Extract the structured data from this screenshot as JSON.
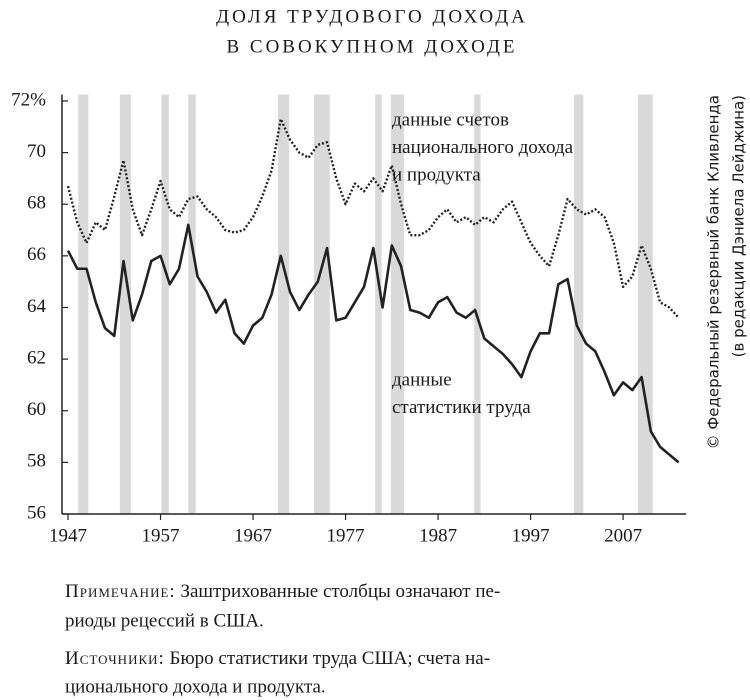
{
  "chart_data": {
    "type": "line",
    "title": [
      "ДОЛЯ ТРУДОВОГО ДОХОДА",
      "В СОВОКУПНОМ ДОХОДЕ"
    ],
    "x": [
      1947,
      1948,
      1949,
      1950,
      1951,
      1952,
      1953,
      1954,
      1955,
      1956,
      1957,
      1958,
      1959,
      1960,
      1961,
      1962,
      1963,
      1964,
      1965,
      1966,
      1967,
      1968,
      1969,
      1970,
      1971,
      1972,
      1973,
      1974,
      1975,
      1976,
      1977,
      1978,
      1979,
      1980,
      1981,
      1982,
      1983,
      1984,
      1985,
      1986,
      1987,
      1988,
      1989,
      1990,
      1991,
      1992,
      1993,
      1994,
      1995,
      1996,
      1997,
      1998,
      1999,
      2000,
      2001,
      2002,
      2003,
      2004,
      2005,
      2006,
      2007,
      2008,
      2009,
      2010,
      2011,
      2012,
      2013
    ],
    "series": [
      {
        "name": [
          "данные счетов",
          "национального дохода",
          "и продукта"
        ],
        "color": "#222222",
        "style": "dotted",
        "values": [
          68.7,
          67.3,
          66.5,
          67.3,
          67.0,
          68.3,
          69.7,
          67.8,
          66.8,
          67.8,
          68.9,
          67.8,
          67.5,
          68.2,
          68.3,
          67.8,
          67.5,
          67.0,
          66.9,
          67.0,
          67.5,
          68.3,
          69.3,
          71.3,
          70.5,
          70.0,
          69.8,
          70.3,
          70.4,
          69.0,
          68.0,
          68.8,
          68.5,
          69.0,
          68.5,
          69.5,
          68.0,
          66.8,
          66.8,
          67.0,
          67.5,
          67.8,
          67.3,
          67.5,
          67.2,
          67.5,
          67.3,
          67.8,
          68.1,
          67.3,
          66.5,
          66.0,
          65.6,
          66.8,
          68.2,
          67.8,
          67.6,
          67.8,
          67.5,
          66.5,
          64.8,
          65.2,
          66.4,
          65.5,
          64.2,
          64.0,
          63.6
        ]
      },
      {
        "name": [
          "данные",
          "статистики труда"
        ],
        "color": "#222222",
        "style": "solid",
        "values": [
          66.2,
          65.5,
          65.5,
          64.2,
          63.2,
          62.9,
          65.8,
          63.5,
          64.5,
          65.8,
          66.0,
          64.9,
          65.5,
          67.2,
          65.2,
          64.6,
          63.8,
          64.3,
          63.0,
          62.6,
          63.3,
          63.6,
          64.5,
          66.0,
          64.6,
          63.9,
          64.5,
          65.0,
          66.3,
          63.5,
          63.6,
          64.2,
          64.8,
          66.3,
          64.0,
          66.4,
          65.6,
          63.9,
          63.8,
          63.6,
          64.2,
          64.4,
          63.8,
          63.6,
          63.9,
          62.8,
          62.5,
          62.2,
          61.8,
          61.3,
          62.3,
          63.0,
          63.0,
          64.9,
          65.1,
          63.3,
          62.6,
          62.3,
          61.5,
          60.6,
          61.1,
          60.8,
          61.3,
          59.2,
          58.6,
          58.3,
          58.0
        ]
      }
    ],
    "recessions": [
      [
        1948.1,
        1949.2
      ],
      [
        1952.6,
        1953.8
      ],
      [
        1957.1,
        1957.9
      ],
      [
        1960.0,
        1960.8
      ],
      [
        1969.7,
        1970.9
      ],
      [
        1973.6,
        1975.3
      ],
      [
        1980.2,
        1980.9
      ],
      [
        1981.9,
        1983.3
      ],
      [
        1990.9,
        1991.6
      ],
      [
        2001.7,
        2002.7
      ],
      [
        2008.6,
        2010.2
      ]
    ],
    "shade_color": "#d9d9d9",
    "xlim": [
      1946.35,
      2013.8
    ],
    "xticks": [
      1947,
      1957,
      1967,
      1977,
      1987,
      1997,
      2007
    ],
    "ylim": [
      56,
      72.25
    ],
    "yticks": [
      56,
      58,
      60,
      62,
      64,
      66,
      68,
      70,
      {
        "value": 72,
        "label": "72%"
      }
    ],
    "grid": false,
    "credit": [
      "© Федеральный резервный банк Кливленда",
      "(в редакции Дэниела Лейджина)"
    ],
    "note": {
      "label": "Примечание:",
      "lines": [
        "Заштрихованные столбцы означают пе-",
        "риоды рецессий в США."
      ]
    },
    "sources": {
      "label": "Источники:",
      "lines": [
        "Бюро статистики труда США; счета на-",
        "ционального дохода и продукта."
      ]
    }
  }
}
